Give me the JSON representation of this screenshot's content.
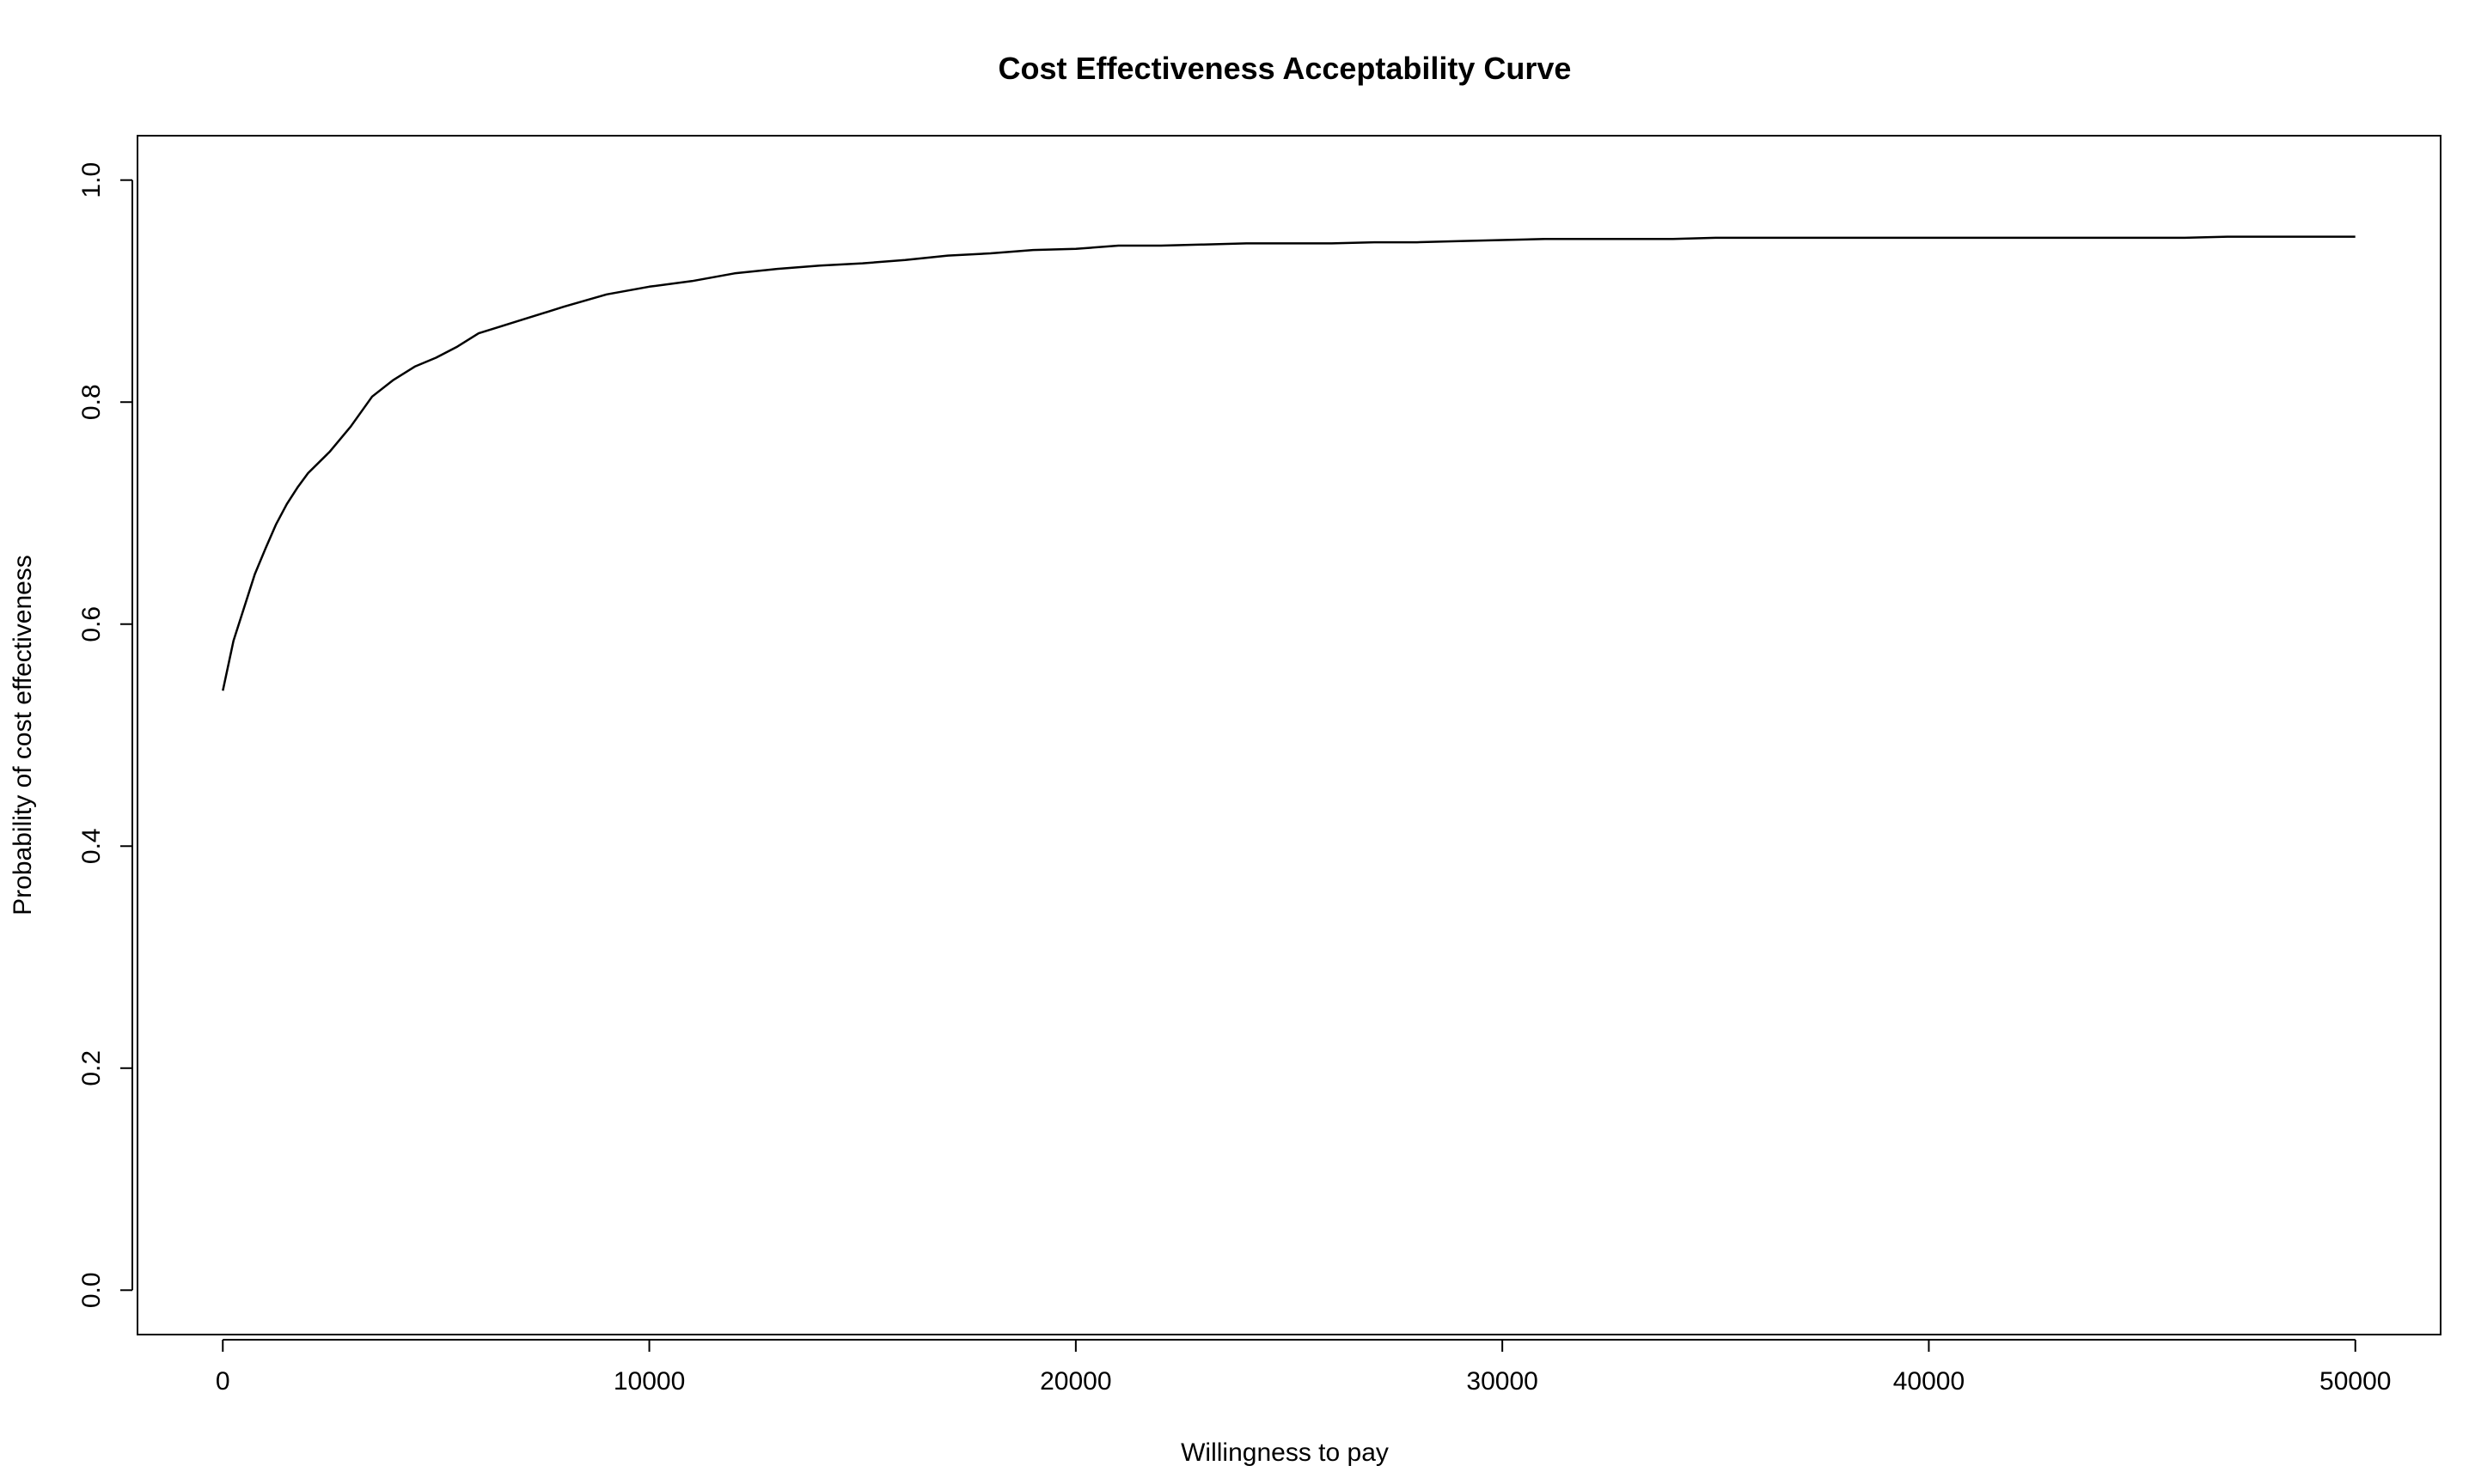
{
  "chart_data": {
    "type": "line",
    "title": "Cost Effectiveness Acceptability Curve",
    "xlabel": "Willingness to pay",
    "ylabel": "Probability of cost effectiveness",
    "xlim": [
      -2000,
      52000
    ],
    "ylim": [
      -0.04,
      1.04
    ],
    "x_ticks": [
      0,
      10000,
      20000,
      30000,
      40000,
      50000
    ],
    "x_tick_labels": [
      "0",
      "10000",
      "20000",
      "30000",
      "40000",
      "50000"
    ],
    "y_ticks": [
      0.0,
      0.2,
      0.4,
      0.6,
      0.8,
      1.0
    ],
    "y_tick_labels": [
      "0.0",
      "0.2",
      "0.4",
      "0.6",
      "0.8",
      "1.0"
    ],
    "grid": false,
    "legend": "none",
    "line_color": "#000000",
    "series": [
      {
        "x": [
          0,
          250,
          500,
          750,
          1000,
          1250,
          1500,
          1750,
          2000,
          2500,
          3000,
          3500,
          4000,
          4500,
          5000,
          5500,
          6000,
          7000,
          8000,
          9000,
          10000,
          11000,
          12000,
          13000,
          14000,
          15000,
          16000,
          17000,
          18000,
          19000,
          20000,
          21000,
          22000,
          23000,
          24000,
          25000,
          26000,
          27000,
          28000,
          29000,
          30000,
          31000,
          32000,
          33000,
          34000,
          35000,
          36000,
          37000,
          38000,
          39000,
          40000,
          41000,
          42000,
          43000,
          44000,
          45000,
          46000,
          47000,
          48000,
          49000,
          50000
        ],
        "y": [
          0.54,
          0.585,
          0.615,
          0.645,
          0.668,
          0.69,
          0.708,
          0.723,
          0.736,
          0.755,
          0.778,
          0.805,
          0.82,
          0.832,
          0.84,
          0.85,
          0.862,
          0.874,
          0.886,
          0.897,
          0.904,
          0.909,
          0.916,
          0.92,
          0.923,
          0.925,
          0.928,
          0.932,
          0.934,
          0.937,
          0.938,
          0.941,
          0.941,
          0.942,
          0.943,
          0.943,
          0.943,
          0.944,
          0.944,
          0.945,
          0.946,
          0.947,
          0.947,
          0.947,
          0.947,
          0.948,
          0.948,
          0.948,
          0.948,
          0.948,
          0.948,
          0.948,
          0.948,
          0.948,
          0.948,
          0.948,
          0.948,
          0.949,
          0.949,
          0.949,
          0.949
        ]
      }
    ]
  }
}
